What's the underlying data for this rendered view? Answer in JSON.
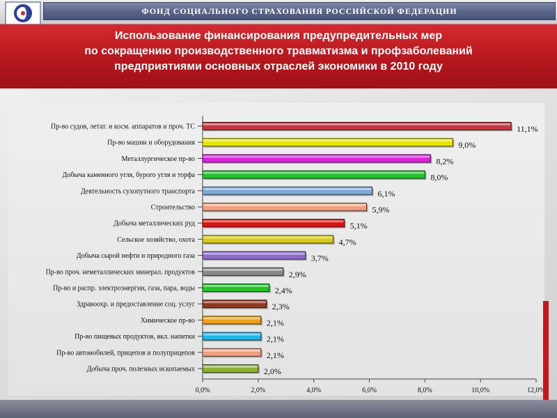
{
  "header": {
    "org_name": "ФОНД  СОЦИАЛЬНОГО  СТРАХОВАНИЯ  РОССИЙСКОЙ  ФЕДЕРАЦИИ",
    "title_lines": [
      "Использование финансирования предупредительных мер",
      "по сокращению производственного травматизма и профзаболеваний",
      "предприятиями основных отраслей экономики в 2010 году"
    ]
  },
  "colors": {
    "title_band": "#b2161c",
    "org_bar": "#5a6488"
  },
  "chart_data": {
    "type": "bar",
    "orientation": "horizontal",
    "title": "",
    "xlabel": "",
    "ylabel": "",
    "xlim": [
      0,
      12
    ],
    "x_ticks": [
      "0,0%",
      "2,0%",
      "4,0%",
      "6,0%",
      "8,0%",
      "10,0%",
      "12,0%"
    ],
    "grid": false,
    "legend": "none",
    "categories": [
      "Пр-во судов, летат. и косм. аппаратов и проч. ТС",
      "Пр-во машин и оборудования",
      "Металлургическое пр-во",
      "Добыча каменного угля, бурого угля и торфа",
      "Деятельность сухопутного транспорта",
      "Строительство",
      "Добыча металлических руд",
      "Сельское хозяйство, охота",
      "Добыча сырой нефти и природного газа",
      "Пр-во проч. неметаллических минерал. продуктов",
      "Пр-во и распр. электроэнергии, газа, пара, воды",
      "Здравоохр. и предоставление соц. услуг",
      "Химическое пр-во",
      "Пр-во пищевых продуктов, вкл. напитки",
      "Пр-во автомобилей, прицепов и полуприцепов",
      "Добыча проч. полезных ископаемых"
    ],
    "values": [
      11.1,
      9.0,
      8.2,
      8.0,
      6.1,
      5.9,
      5.1,
      4.7,
      3.7,
      2.9,
      2.4,
      2.3,
      2.1,
      2.1,
      2.1,
      2.0
    ],
    "value_labels": [
      "11,1%",
      "9,0%",
      "8,2%",
      "8,0%",
      "6,1%",
      "5,9%",
      "5,1%",
      "4,7%",
      "3,7%",
      "2,9%",
      "2,4%",
      "2,3%",
      "2,1%",
      "2,1%",
      "2,1%",
      "2,0%"
    ],
    "bar_colors": [
      "#c8343f",
      "#e6e600",
      "#e020e0",
      "#22c42a",
      "#7fa8d8",
      "#f0a080",
      "#d81414",
      "#d8c81a",
      "#8c6cc8",
      "#8a8a8a",
      "#22c42a",
      "#903820",
      "#f0a014",
      "#1cb8e8",
      "#f0a080",
      "#8cb030"
    ]
  }
}
